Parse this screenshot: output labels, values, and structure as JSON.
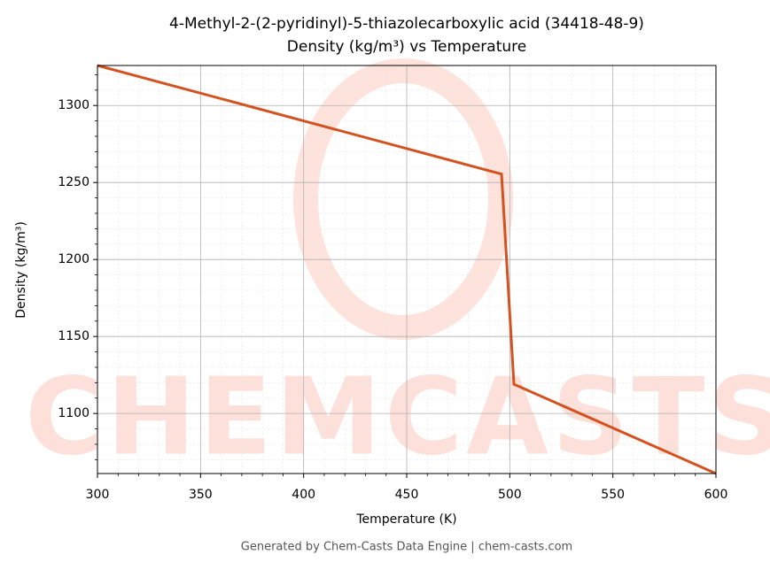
{
  "chart_data": {
    "type": "line",
    "title": "4-Methyl-2-(2-pyridinyl)-5-thiazolecarboxylic acid (34418-48-9)",
    "subtitle": "Density (kg/m³) vs Temperature",
    "x_label": "Temperature (K)",
    "y_label": "Density (kg/m³)",
    "footer": "Generated by Chem-Casts Data Engine | chem-casts.com",
    "watermark": "CHEMCASTS",
    "x": [
      300,
      496,
      502,
      600
    ],
    "series": [
      {
        "name": "Density",
        "color": "#d4521f",
        "values": [
          1326,
          1255.5,
          1119,
          1061
        ]
      }
    ],
    "xlim": [
      300,
      600
    ],
    "ylim": [
      1061,
      1326
    ],
    "xticks": [
      300,
      350,
      400,
      450,
      500,
      550,
      600
    ],
    "yticks": [
      1100,
      1150,
      1200,
      1250,
      1300
    ],
    "xminor_ticks": [
      310,
      320,
      330,
      340,
      360,
      370,
      380,
      390,
      410,
      420,
      430,
      440,
      460,
      470,
      480,
      490,
      510,
      520,
      530,
      540,
      560,
      570,
      580,
      590
    ],
    "yminor_ticks": [
      1070,
      1080,
      1090,
      1110,
      1120,
      1130,
      1140,
      1160,
      1170,
      1180,
      1190,
      1210,
      1220,
      1230,
      1240,
      1260,
      1270,
      1280,
      1290,
      1310,
      1320
    ],
    "grid": true
  }
}
